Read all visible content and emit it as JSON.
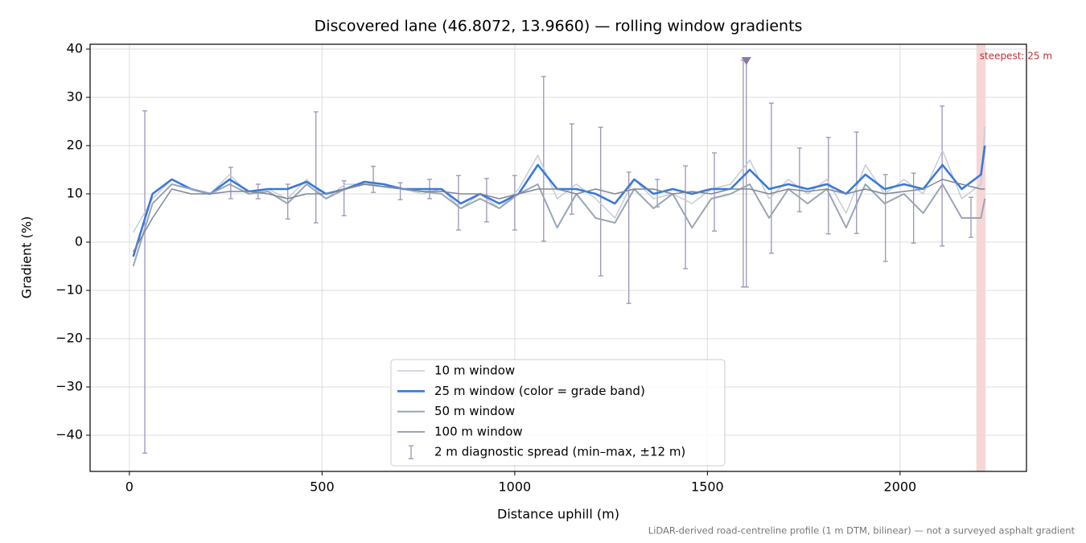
{
  "chart_data": {
    "type": "line",
    "title": "Discovered lane (46.8072, 13.9660) — rolling window gradients",
    "x_label": "Distance uphill (m)",
    "y_label": "Gradient (%)",
    "footnote": "LiDAR-derived road-centreline profile (1 m DTM, bilinear) — not a surveyed asphalt gradient",
    "xlim": [
      -102,
      2328
    ],
    "ylim": [
      -47.5,
      41
    ],
    "xticks": [
      0,
      500,
      1000,
      1500,
      2000
    ],
    "yticks": [
      {
        "value": -40,
        "label": "−40"
      },
      {
        "value": -30,
        "label": "−30"
      },
      {
        "value": -20,
        "label": "−20"
      },
      {
        "value": -10,
        "label": "−10"
      },
      0,
      10,
      20,
      30,
      40
    ],
    "grid": true,
    "legend": "lower center",
    "x": [
      10,
      60,
      110,
      160,
      210,
      260,
      310,
      360,
      410,
      460,
      510,
      560,
      610,
      660,
      710,
      760,
      810,
      860,
      910,
      960,
      1010,
      1060,
      1110,
      1160,
      1210,
      1260,
      1310,
      1360,
      1410,
      1460,
      1510,
      1560,
      1610,
      1660,
      1710,
      1760,
      1810,
      1860,
      1910,
      1960,
      2010,
      2060,
      2110,
      2160,
      2210,
      2220
    ],
    "series": [
      {
        "name": "10 m window",
        "color": "#c5ccd6",
        "width": 1.5,
        "values": [
          2,
          9,
          13,
          11,
          10,
          14,
          10,
          11,
          9,
          13,
          9,
          12,
          12,
          12,
          11,
          10,
          11,
          7,
          10,
          7,
          11,
          18,
          9,
          12,
          9,
          5,
          13,
          9,
          10,
          8,
          11,
          12,
          17,
          9,
          13,
          10,
          13,
          6,
          16,
          10,
          13,
          10,
          19,
          9,
          12,
          24
        ]
      },
      {
        "name": "25 m window (color = grade band)",
        "color": "#3a78d8",
        "width": 2.6,
        "values": [
          -3,
          10,
          13,
          11,
          10,
          13,
          10.5,
          11,
          11,
          12.5,
          10,
          11,
          12.5,
          12,
          11,
          11,
          11,
          8,
          10,
          8,
          10,
          16,
          11,
          11,
          10,
          8,
          13,
          10,
          11,
          10,
          11,
          11,
          15,
          11,
          12,
          11,
          12,
          10,
          14,
          11,
          12,
          11,
          16,
          11,
          14,
          20
        ]
      },
      {
        "name": "50 m window",
        "color": "#9aa5b4",
        "width": 2,
        "values": [
          -5,
          8,
          12,
          11,
          10,
          12,
          10,
          10.5,
          8,
          12,
          9,
          11,
          12,
          11.5,
          11,
          10.5,
          10,
          7,
          9,
          7,
          10,
          12,
          3,
          10,
          5,
          4,
          11,
          7,
          10,
          3,
          9,
          10,
          12,
          5,
          11,
          8,
          11,
          3,
          12,
          8,
          10,
          6,
          12,
          5,
          5,
          9
        ]
      },
      {
        "name": "100 m window",
        "color": "#7d8796",
        "width": 1.5,
        "values": [
          -2,
          5,
          11,
          10,
          10,
          10.5,
          10.5,
          10,
          9,
          10,
          10,
          11,
          12,
          11.5,
          11,
          10.5,
          10.5,
          10,
          10,
          9,
          10,
          11,
          11,
          10,
          11,
          10,
          11,
          11,
          10,
          10.5,
          10,
          11,
          11,
          10,
          11,
          10.5,
          11,
          10,
          11,
          10,
          10.5,
          11,
          13,
          12,
          11,
          11
        ]
      }
    ],
    "errorbars": {
      "name": "2 m diagnostic spread (min–max, ±12 m)",
      "color": "#9b94b8",
      "x": [
        40,
        263,
        334,
        411,
        484,
        557,
        633,
        703,
        779,
        854,
        927,
        1000,
        1075,
        1148,
        1223,
        1296,
        1370,
        1443,
        1518,
        1593,
        1601,
        1666,
        1739,
        1814,
        1887,
        1962,
        2035,
        2109,
        2184
      ],
      "low": [
        -43.7,
        9,
        9,
        4.8,
        4,
        5.5,
        10.3,
        8.8,
        9,
        2.5,
        4.2,
        2.5,
        0.2,
        5.8,
        -7,
        -12.7,
        7.3,
        -5.5,
        2.3,
        -9.3,
        -9.3,
        -2.3,
        6.3,
        1.7,
        1.8,
        -4,
        -0.2,
        -0.8,
        1
      ],
      "high": [
        27.2,
        15.5,
        12,
        12,
        27,
        12.7,
        15.7,
        12.3,
        13,
        13.8,
        13.2,
        13.8,
        34.3,
        24.5,
        23.8,
        14.5,
        13,
        15.8,
        18.5,
        37.7,
        37.7,
        28.8,
        19.5,
        21.7,
        22.8,
        14,
        14.3,
        28.2,
        9.3
      ]
    },
    "peak_marker": {
      "x": 1601,
      "y": 37.5,
      "color": "#8a7aaa"
    },
    "highlight": {
      "x0": 2198,
      "x1": 2222,
      "color": "#f4c4c4",
      "label": "steepest: 25 m",
      "label_color": "#c0303a"
    }
  }
}
